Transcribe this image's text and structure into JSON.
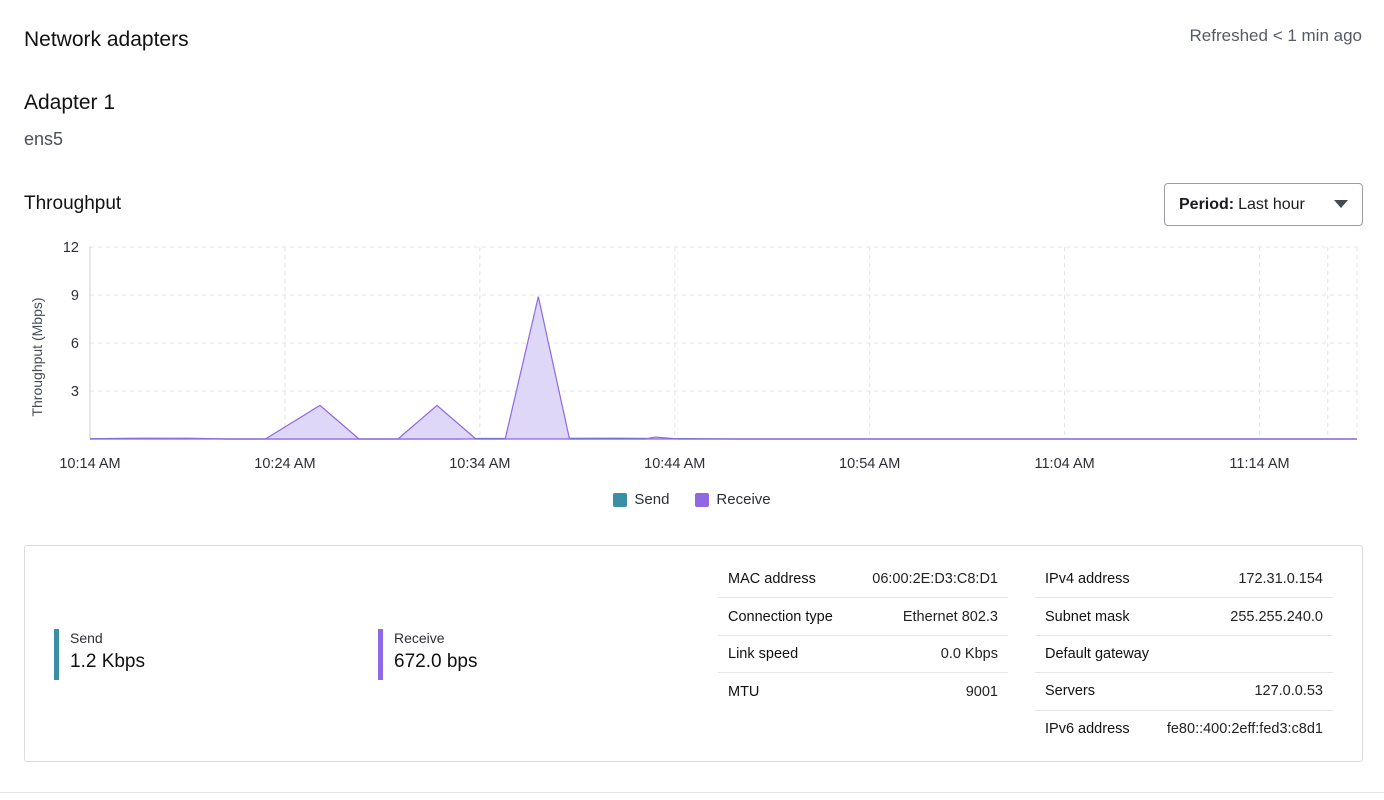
{
  "header": {
    "title": "Network adapters",
    "refreshed": "Refreshed < 1 min ago"
  },
  "adapter": {
    "title": "Adapter 1",
    "name": "ens5"
  },
  "throughput": {
    "title": "Throughput",
    "period_label": "Period:",
    "period_value": "Last hour"
  },
  "legend": {
    "send": "Send",
    "receive": "Receive"
  },
  "colors": {
    "send": "#3a8fa6",
    "receive": "#8f68e3",
    "receive_fill": "#dcd3f6",
    "grid": "#e2e3e6"
  },
  "chart_data": {
    "type": "area",
    "ylabel": "Throughput (Mbps)",
    "ylim": [
      0,
      12
    ],
    "yticks": [
      3,
      6,
      9,
      12
    ],
    "xticks": [
      "10:14 AM",
      "10:24 AM",
      "10:34 AM",
      "10:44 AM",
      "10:54 AM",
      "11:04 AM",
      "11:14 AM"
    ],
    "xlim_minutes": [
      0,
      65
    ],
    "grid": true,
    "series": [
      {
        "name": "Send",
        "points": [
          [
            0,
            0.02
          ],
          [
            3,
            0.05
          ],
          [
            7,
            0.0
          ],
          [
            14,
            0.0
          ],
          [
            20,
            0.03
          ],
          [
            27,
            0.05
          ],
          [
            33,
            0.0
          ],
          [
            19,
            0.0
          ],
          [
            41,
            0.0
          ],
          [
            55,
            0.0
          ],
          [
            65,
            0.0
          ]
        ]
      },
      {
        "name": "Receive",
        "points": [
          [
            0,
            0.0
          ],
          [
            5,
            0.05
          ],
          [
            7,
            0.0
          ],
          [
            9,
            0.0
          ],
          [
            11.8,
            2.1
          ],
          [
            13.8,
            0.0
          ],
          [
            15.8,
            0.0
          ],
          [
            17.8,
            2.1
          ],
          [
            19.8,
            0.0
          ],
          [
            21.3,
            0.0
          ],
          [
            23,
            8.9
          ],
          [
            24.6,
            0.0
          ],
          [
            28.5,
            0.0
          ],
          [
            29,
            0.12
          ],
          [
            30.2,
            0.0
          ],
          [
            65,
            0.0
          ]
        ]
      }
    ]
  },
  "stats": {
    "send_label": "Send",
    "send_value": "1.2 Kbps",
    "receive_label": "Receive",
    "receive_value": "672.0 bps"
  },
  "details_left": [
    {
      "key": "MAC address",
      "value": "06:00:2E:D3:C8:D1"
    },
    {
      "key": "Connection type",
      "value": "Ethernet 802.3"
    },
    {
      "key": "Link speed",
      "value": "0.0 Kbps"
    },
    {
      "key": "MTU",
      "value": "9001"
    }
  ],
  "details_right": [
    {
      "key": "IPv4 address",
      "value": "172.31.0.154"
    },
    {
      "key": "Subnet mask",
      "value": "255.255.240.0"
    },
    {
      "key": "Default gateway",
      "value": ""
    },
    {
      "key": "Servers",
      "value": "127.0.0.53"
    },
    {
      "key": "IPv6 address",
      "value": "fe80::400:2eff:fed3:c8d1"
    }
  ]
}
